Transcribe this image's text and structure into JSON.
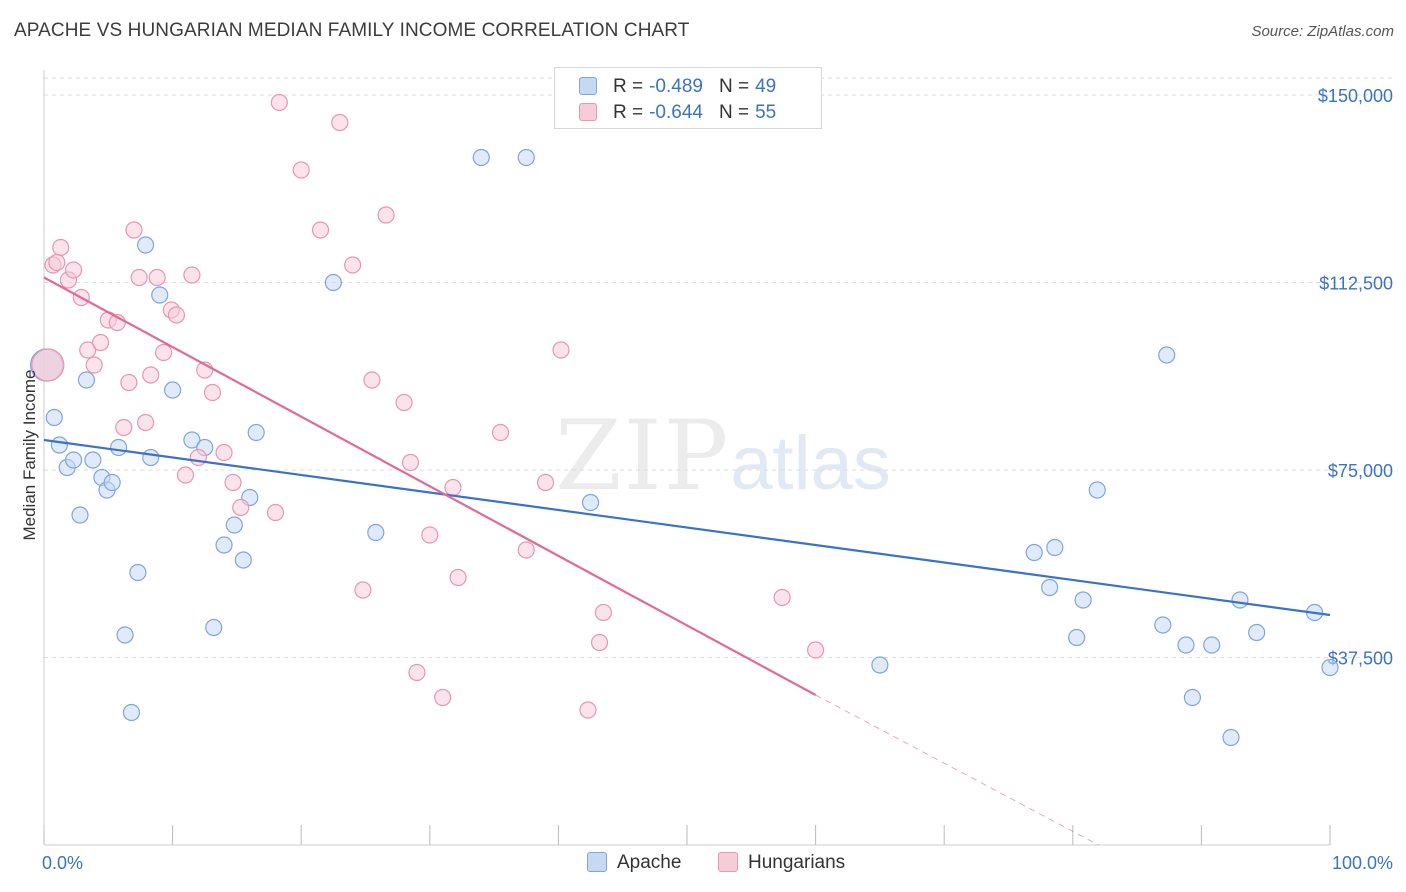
{
  "header": {
    "title": "APACHE VS HUNGARIAN MEDIAN FAMILY INCOME CORRELATION CHART",
    "source": "Source: ZipAtlas.com"
  },
  "watermark": {
    "zip": "ZIP",
    "atlas": "atlas"
  },
  "colors": {
    "apache_fill": "#c6d9f2",
    "apache_stroke": "#7ea6dc",
    "apache_line": "#3a73c4",
    "hungarians_fill": "#f6ccd9",
    "hungarians_stroke": "#e896b2",
    "hungarians_line": "#e06a98",
    "axis_label": "#3a73c4",
    "grid": "#dddddd"
  },
  "legend_top": [
    {
      "r_label": "R =",
      "r_value": "-0.489",
      "n_label": "N =",
      "n_value": "49"
    },
    {
      "r_label": "R =",
      "r_value": "-0.644",
      "n_label": "N =",
      "n_value": "55"
    }
  ],
  "legend_bottom": [
    "Apache",
    "Hungarians"
  ],
  "chart_data": {
    "type": "scatter",
    "title": "APACHE VS HUNGARIAN MEDIAN FAMILY INCOME CORRELATION CHART",
    "xlabel": "",
    "ylabel": "Median Family Income",
    "xlim": [
      0,
      100
    ],
    "ylim": [
      0,
      155000
    ],
    "x_tick_labels": [
      "0.0%",
      "100.0%"
    ],
    "y_ticks": [
      37500,
      75000,
      112500,
      150000
    ],
    "y_tick_labels": [
      "$37,500",
      "$75,000",
      "$112,500",
      "$150,000"
    ],
    "grid": true,
    "legend_placement": "top-center",
    "series": [
      {
        "name": "Apache",
        "r": -0.489,
        "n": 49,
        "trend": {
          "x": [
            0,
            100
          ],
          "y": [
            81000,
            46000
          ]
        },
        "points": [
          [
            0.2,
            96000
          ],
          [
            0.8,
            85500
          ],
          [
            1.2,
            80000
          ],
          [
            1.8,
            75500
          ],
          [
            2.3,
            77000
          ],
          [
            2.8,
            66000
          ],
          [
            3.3,
            93000
          ],
          [
            3.8,
            77000
          ],
          [
            4.5,
            73500
          ],
          [
            4.9,
            71000
          ],
          [
            5.3,
            72500
          ],
          [
            5.8,
            79500
          ],
          [
            6.3,
            42000
          ],
          [
            6.8,
            26500
          ],
          [
            7.3,
            54500
          ],
          [
            7.9,
            120000
          ],
          [
            8.3,
            77500
          ],
          [
            9.0,
            110000
          ],
          [
            10.0,
            91000
          ],
          [
            11.5,
            81000
          ],
          [
            12.5,
            79500
          ],
          [
            13.2,
            43500
          ],
          [
            14.0,
            60000
          ],
          [
            14.8,
            64000
          ],
          [
            15.5,
            57000
          ],
          [
            16.0,
            69500
          ],
          [
            16.5,
            82500
          ],
          [
            22.5,
            112500
          ],
          [
            25.8,
            62500
          ],
          [
            34.0,
            137500
          ],
          [
            37.5,
            137500
          ],
          [
            42.5,
            68500
          ],
          [
            65.0,
            36000
          ],
          [
            77.0,
            58500
          ],
          [
            78.2,
            51500
          ],
          [
            78.6,
            59500
          ],
          [
            80.3,
            41500
          ],
          [
            80.8,
            49000
          ],
          [
            81.9,
            71000
          ],
          [
            87.0,
            44000
          ],
          [
            87.3,
            98000
          ],
          [
            88.8,
            40000
          ],
          [
            89.3,
            29500
          ],
          [
            90.8,
            40000
          ],
          [
            92.3,
            21500
          ],
          [
            93.0,
            49000
          ],
          [
            94.3,
            42500
          ],
          [
            98.8,
            46500
          ],
          [
            100.0,
            35500
          ]
        ]
      },
      {
        "name": "Hungarians",
        "r": -0.644,
        "n": 55,
        "trend": {
          "x": [
            0,
            60
          ],
          "y": [
            113500,
            30000
          ]
        },
        "trend_dashed": {
          "x": [
            60,
            82
          ],
          "y": [
            30000,
            0
          ]
        },
        "points": [
          [
            0.3,
            96000
          ],
          [
            0.7,
            116000
          ],
          [
            1.3,
            119500
          ],
          [
            1.9,
            113000
          ],
          [
            2.3,
            115000
          ],
          [
            2.9,
            109500
          ],
          [
            3.4,
            99000
          ],
          [
            3.9,
            96000
          ],
          [
            4.4,
            100500
          ],
          [
            5.0,
            105000
          ],
          [
            5.7,
            104500
          ],
          [
            6.2,
            83500
          ],
          [
            6.6,
            92500
          ],
          [
            7.0,
            123000
          ],
          [
            7.4,
            113500
          ],
          [
            7.9,
            84500
          ],
          [
            8.3,
            94000
          ],
          [
            8.8,
            113500
          ],
          [
            9.3,
            98500
          ],
          [
            9.9,
            107000
          ],
          [
            10.3,
            106000
          ],
          [
            11.0,
            74000
          ],
          [
            11.5,
            114000
          ],
          [
            12.0,
            77500
          ],
          [
            12.5,
            95000
          ],
          [
            13.1,
            90500
          ],
          [
            14.0,
            78500
          ],
          [
            14.7,
            72500
          ],
          [
            15.3,
            67500
          ],
          [
            18.0,
            66500
          ],
          [
            18.3,
            148500
          ],
          [
            20.0,
            135000
          ],
          [
            21.5,
            123000
          ],
          [
            23.0,
            144500
          ],
          [
            24.0,
            116000
          ],
          [
            24.8,
            51000
          ],
          [
            25.5,
            93000
          ],
          [
            26.6,
            126000
          ],
          [
            28.0,
            88500
          ],
          [
            28.5,
            76500
          ],
          [
            29.0,
            34500
          ],
          [
            30.0,
            62000
          ],
          [
            31.0,
            29500
          ],
          [
            31.8,
            71500
          ],
          [
            32.2,
            53500
          ],
          [
            35.5,
            82500
          ],
          [
            37.5,
            59000
          ],
          [
            39.0,
            72500
          ],
          [
            40.2,
            99000
          ],
          [
            42.3,
            27000
          ],
          [
            43.2,
            40500
          ],
          [
            43.5,
            46500
          ],
          [
            57.4,
            49500
          ],
          [
            60.0,
            39000
          ],
          [
            1.0,
            116500
          ]
        ]
      }
    ]
  }
}
